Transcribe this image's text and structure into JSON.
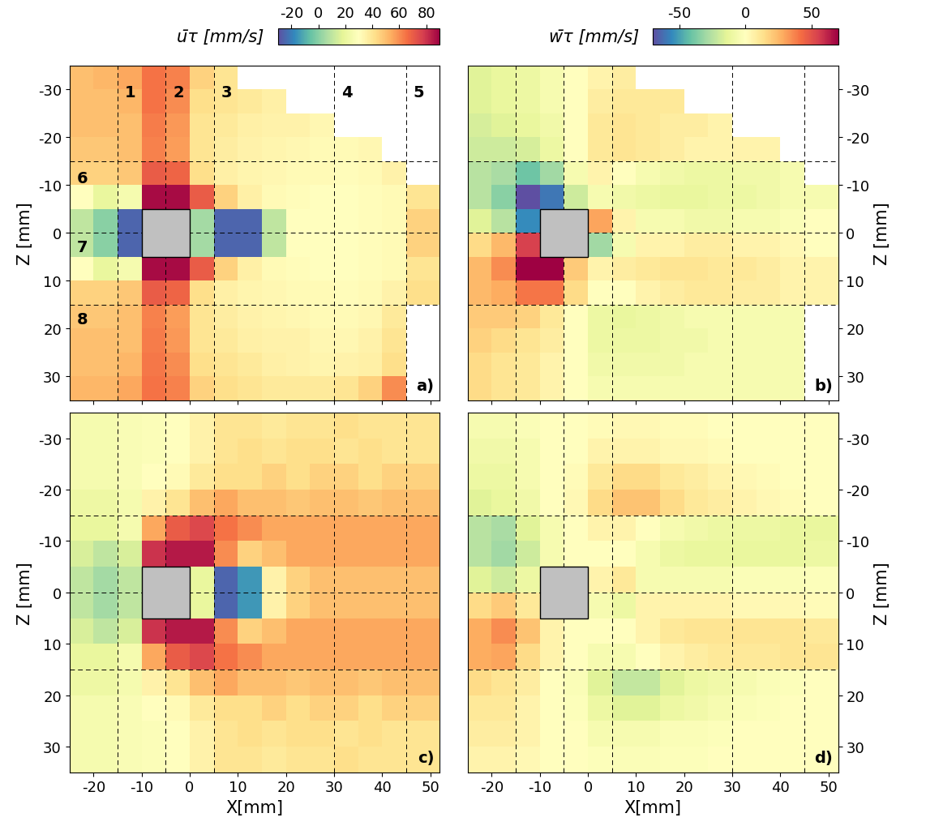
{
  "chart_data": [
    {
      "type": "heatmap",
      "panel_label": "a)",
      "ylabel": "Z [mm]",
      "xlim": [
        -25,
        52
      ],
      "ylim": [
        35,
        -35
      ],
      "xticks": [
        -20,
        -10,
        0,
        10,
        20,
        30,
        40,
        50
      ],
      "yticks": [
        -30,
        -20,
        -10,
        0,
        10,
        20,
        30
      ],
      "tick_labels": "y",
      "y_side": "left",
      "x_edges": [
        -25,
        -20,
        -15,
        -10,
        -5,
        0,
        5,
        10,
        15,
        20,
        25,
        30,
        35,
        40,
        45,
        52
      ],
      "y_edges": [
        -35,
        -30,
        -25,
        -20,
        -15,
        -10,
        -5,
        0,
        5,
        10,
        15,
        20,
        25,
        30,
        35
      ],
      "clim": [
        -30,
        90
      ],
      "colorbar": {
        "label": "ūτ [mm/s]",
        "ticks": [
          -20,
          0,
          20,
          40,
          60,
          80
        ]
      },
      "cells": [
        [
          50,
          52,
          55,
          65,
          62,
          45,
          40,
          null,
          null,
          null,
          null,
          null,
          null,
          null,
          null
        ],
        [
          50,
          50,
          52,
          65,
          60,
          42,
          40,
          38,
          36,
          null,
          null,
          null,
          null,
          null,
          null
        ],
        [
          50,
          50,
          50,
          63,
          58,
          40,
          38,
          36,
          35,
          35,
          33,
          null,
          null,
          null,
          null
        ],
        [
          48,
          48,
          50,
          62,
          57,
          40,
          37,
          35,
          34,
          33,
          32,
          32,
          33,
          null,
          null
        ],
        [
          45,
          45,
          48,
          70,
          68,
          42,
          36,
          34,
          33,
          32,
          32,
          31,
          32,
          35,
          null
        ],
        [
          30,
          20,
          25,
          88,
          88,
          70,
          45,
          36,
          32,
          31,
          30,
          30,
          31,
          32,
          40
        ],
        [
          10,
          0,
          -25,
          null,
          null,
          5,
          -25,
          -25,
          10,
          30,
          30,
          30,
          31,
          32,
          45
        ],
        [
          10,
          0,
          -25,
          null,
          null,
          5,
          -25,
          -25,
          10,
          30,
          30,
          30,
          31,
          32,
          45
        ],
        [
          30,
          20,
          25,
          88,
          88,
          70,
          45,
          36,
          32,
          31,
          30,
          30,
          31,
          32,
          40
        ],
        [
          45,
          45,
          48,
          70,
          68,
          42,
          36,
          34,
          33,
          32,
          32,
          31,
          32,
          35,
          42
        ],
        [
          48,
          48,
          50,
          62,
          57,
          40,
          37,
          35,
          34,
          33,
          32,
          32,
          33,
          38,
          null
        ],
        [
          50,
          50,
          50,
          63,
          58,
          40,
          38,
          36,
          35,
          35,
          33,
          33,
          35,
          40,
          null
        ],
        [
          50,
          50,
          52,
          64,
          60,
          42,
          40,
          38,
          36,
          35,
          34,
          35,
          36,
          42,
          null
        ],
        [
          52,
          52,
          55,
          65,
          62,
          45,
          42,
          40,
          38,
          38,
          38,
          40,
          45,
          60,
          null
        ]
      ],
      "obstacle": {
        "x": [
          -10,
          0
        ],
        "y": [
          -5,
          5
        ]
      },
      "reference_lines": {
        "x": [
          -15,
          -5,
          5,
          30,
          45
        ],
        "y": [
          -15,
          0,
          15
        ]
      },
      "line_labels": [
        {
          "label": "1",
          "x": -15
        },
        {
          "label": "2",
          "x": -5
        },
        {
          "label": "3",
          "x": 5
        },
        {
          "label": "4",
          "x": 30
        },
        {
          "label": "5",
          "x": 45
        },
        {
          "label": "6",
          "y": -15
        },
        {
          "label": "7",
          "y": 0
        },
        {
          "label": "8",
          "y": 15
        }
      ]
    },
    {
      "type": "heatmap",
      "panel_label": "b)",
      "ylabel": "Z [mm]",
      "xlim": [
        -25,
        52
      ],
      "ylim": [
        35,
        -35
      ],
      "xticks": [
        -20,
        -10,
        0,
        10,
        20,
        30,
        40,
        50
      ],
      "yticks": [
        -30,
        -20,
        -10,
        0,
        10,
        20,
        30
      ],
      "tick_labels": "y",
      "y_side": "right",
      "x_edges": [
        -25,
        -20,
        -15,
        -10,
        -5,
        0,
        5,
        10,
        15,
        20,
        25,
        30,
        35,
        40,
        45,
        52
      ],
      "y_edges": [
        -35,
        -30,
        -25,
        -20,
        -15,
        -10,
        -5,
        0,
        5,
        10,
        15,
        20,
        25,
        30,
        35
      ],
      "clim": [
        -70,
        70
      ],
      "colorbar": {
        "label": "w̄τ [mm/s]",
        "ticks": [
          -50,
          0,
          50
        ]
      },
      "cells": [
        [
          -15,
          -12,
          -10,
          -5,
          0,
          5,
          8,
          null,
          null,
          null,
          null,
          null,
          null,
          null,
          null
        ],
        [
          -15,
          -12,
          -10,
          -5,
          0,
          8,
          10,
          10,
          10,
          null,
          null,
          null,
          null,
          null,
          null
        ],
        [
          -18,
          -15,
          -12,
          -8,
          0,
          10,
          12,
          10,
          8,
          8,
          5,
          null,
          null,
          null,
          null
        ],
        [
          -20,
          -20,
          -18,
          -10,
          0,
          10,
          12,
          10,
          8,
          5,
          5,
          5,
          5,
          null,
          null
        ],
        [
          -25,
          -28,
          -40,
          -30,
          -5,
          5,
          0,
          -5,
          -8,
          -10,
          -10,
          -8,
          -8,
          -5,
          null
        ],
        [
          -25,
          -35,
          -70,
          -60,
          -20,
          -5,
          -8,
          -10,
          -12,
          -12,
          -10,
          -10,
          -8,
          -5,
          -5
        ],
        [
          -15,
          -25,
          -55,
          null,
          null,
          30,
          5,
          -5,
          -5,
          -8,
          -8,
          -5,
          -5,
          -3,
          0
        ],
        [
          15,
          25,
          55,
          null,
          null,
          -30,
          -5,
          5,
          5,
          8,
          8,
          5,
          5,
          3,
          0
        ],
        [
          25,
          35,
          70,
          70,
          20,
          5,
          8,
          10,
          12,
          12,
          10,
          10,
          8,
          5,
          5
        ],
        [
          25,
          28,
          40,
          40,
          15,
          0,
          0,
          5,
          8,
          10,
          10,
          8,
          8,
          5,
          5
        ],
        [
          20,
          20,
          18,
          10,
          0,
          -10,
          -12,
          -10,
          -8,
          -5,
          -5,
          -5,
          -5,
          -5,
          null
        ],
        [
          18,
          15,
          12,
          8,
          0,
          -10,
          -10,
          -10,
          -8,
          -8,
          -5,
          -5,
          -5,
          -5,
          null
        ],
        [
          15,
          12,
          10,
          5,
          0,
          -8,
          -8,
          -8,
          -8,
          -5,
          -5,
          -5,
          -5,
          -5,
          null
        ],
        [
          15,
          12,
          10,
          5,
          0,
          -5,
          -5,
          -5,
          -5,
          -5,
          -5,
          -5,
          -5,
          -5,
          null
        ]
      ],
      "obstacle": {
        "x": [
          -10,
          0
        ],
        "y": [
          -5,
          5
        ]
      },
      "reference_lines": {
        "x": [
          -15,
          -5,
          5,
          30,
          45
        ],
        "y": [
          -15,
          0,
          15
        ]
      }
    },
    {
      "type": "heatmap",
      "panel_label": "c)",
      "xlabel": "X[mm]",
      "ylabel": "Z [mm]",
      "xlim": [
        -25,
        52
      ],
      "ylim": [
        35,
        -35
      ],
      "xticks": [
        -20,
        -10,
        0,
        10,
        20,
        30,
        40,
        50
      ],
      "yticks": [
        -30,
        -20,
        -10,
        0,
        10,
        20,
        30
      ],
      "tick_labels": true,
      "y_side": "left",
      "x_edges": [
        -25,
        -20,
        -15,
        -10,
        -5,
        0,
        5,
        10,
        15,
        20,
        25,
        30,
        35,
        40,
        45,
        52
      ],
      "y_edges": [
        -35,
        -30,
        -25,
        -20,
        -15,
        -10,
        -5,
        0,
        5,
        10,
        15,
        20,
        25,
        30,
        35
      ],
      "clim": [
        -30,
        90
      ],
      "cells": [
        [
          25,
          25,
          27,
          28,
          30,
          35,
          40,
          40,
          38,
          40,
          40,
          42,
          40,
          40,
          40
        ],
        [
          25,
          25,
          27,
          28,
          30,
          35,
          40,
          42,
          40,
          42,
          42,
          40,
          42,
          40,
          40
        ],
        [
          25,
          25,
          27,
          30,
          32,
          38,
          42,
          42,
          45,
          42,
          45,
          45,
          42,
          45,
          45
        ],
        [
          22,
          22,
          25,
          35,
          40,
          50,
          55,
          50,
          50,
          48,
          50,
          50,
          48,
          50,
          50
        ],
        [
          20,
          20,
          25,
          55,
          70,
          75,
          65,
          60,
          55,
          55,
          55,
          55,
          55,
          55,
          55
        ],
        [
          15,
          10,
          15,
          80,
          85,
          85,
          60,
          45,
          50,
          55,
          55,
          55,
          55,
          55,
          55
        ],
        [
          10,
          5,
          10,
          null,
          null,
          20,
          -25,
          -15,
          35,
          45,
          50,
          50,
          50,
          50,
          50
        ],
        [
          10,
          5,
          10,
          null,
          null,
          20,
          -25,
          -15,
          35,
          45,
          50,
          50,
          50,
          50,
          50
        ],
        [
          15,
          10,
          15,
          80,
          85,
          85,
          60,
          45,
          50,
          55,
          55,
          55,
          55,
          55,
          55
        ],
        [
          20,
          20,
          25,
          55,
          70,
          75,
          65,
          60,
          55,
          55,
          55,
          55,
          55,
          55,
          55
        ],
        [
          22,
          22,
          25,
          35,
          40,
          50,
          55,
          50,
          50,
          48,
          50,
          50,
          48,
          50,
          50
        ],
        [
          25,
          25,
          27,
          30,
          32,
          38,
          42,
          42,
          45,
          42,
          45,
          45,
          42,
          45,
          45
        ],
        [
          25,
          25,
          27,
          28,
          30,
          35,
          40,
          42,
          40,
          42,
          42,
          40,
          42,
          40,
          40
        ],
        [
          25,
          25,
          27,
          28,
          30,
          35,
          40,
          40,
          38,
          40,
          40,
          42,
          40,
          40,
          40
        ]
      ],
      "obstacle": {
        "x": [
          -10,
          0
        ],
        "y": [
          -5,
          5
        ]
      },
      "reference_lines": {
        "x": [
          -15,
          -5,
          5,
          30,
          45
        ],
        "y": [
          -15,
          0,
          15
        ]
      }
    },
    {
      "type": "heatmap",
      "panel_label": "d)",
      "xlabel": "X[mm]",
      "ylabel": "Z [mm]",
      "xlim": [
        -25,
        52
      ],
      "ylim": [
        35,
        -35
      ],
      "xticks": [
        -20,
        -10,
        0,
        10,
        20,
        30,
        40,
        50
      ],
      "yticks": [
        -30,
        -20,
        -10,
        0,
        10,
        20,
        30
      ],
      "tick_labels": true,
      "y_side": "right",
      "x_edges": [
        -25,
        -20,
        -15,
        -10,
        -5,
        0,
        5,
        10,
        15,
        20,
        25,
        30,
        35,
        40,
        45,
        52
      ],
      "y_edges": [
        -35,
        -30,
        -25,
        -20,
        -15,
        -10,
        -5,
        0,
        5,
        10,
        15,
        20,
        25,
        30,
        35
      ],
      "clim": [
        -70,
        70
      ],
      "cells": [
        [
          -5,
          -5,
          -3,
          0,
          0,
          2,
          3,
          3,
          2,
          2,
          0,
          0,
          0,
          0,
          0
        ],
        [
          -8,
          -8,
          -5,
          0,
          0,
          5,
          5,
          5,
          3,
          3,
          2,
          0,
          0,
          0,
          0
        ],
        [
          -10,
          -10,
          -5,
          0,
          2,
          10,
          15,
          15,
          10,
          8,
          5,
          3,
          2,
          0,
          0
        ],
        [
          -15,
          -12,
          -8,
          0,
          3,
          15,
          22,
          22,
          15,
          10,
          8,
          5,
          3,
          2,
          0
        ],
        [
          -25,
          -28,
          -15,
          -5,
          0,
          5,
          5,
          0,
          -5,
          -8,
          -10,
          -10,
          -10,
          -12,
          -12
        ],
        [
          -25,
          -30,
          -20,
          -5,
          0,
          0,
          0,
          -5,
          -10,
          -12,
          -12,
          -12,
          -12,
          -12,
          -10
        ],
        [
          -15,
          -20,
          -10,
          null,
          null,
          5,
          10,
          -5,
          -5,
          -5,
          -5,
          -3,
          -3,
          -3,
          -2
        ],
        [
          15,
          20,
          10,
          null,
          null,
          -5,
          -10,
          5,
          5,
          5,
          5,
          3,
          3,
          3,
          2
        ],
        [
          28,
          35,
          22,
          5,
          0,
          0,
          0,
          5,
          10,
          12,
          12,
          12,
          12,
          12,
          10
        ],
        [
          28,
          30,
          15,
          5,
          0,
          -5,
          -5,
          0,
          5,
          8,
          10,
          10,
          10,
          12,
          12
        ],
        [
          15,
          12,
          8,
          0,
          -3,
          -15,
          -22,
          -22,
          -15,
          -10,
          -8,
          -5,
          -3,
          -2,
          0
        ],
        [
          10,
          10,
          5,
          0,
          -2,
          -10,
          -15,
          -15,
          -10,
          -8,
          -5,
          -3,
          -2,
          0,
          0
        ],
        [
          8,
          8,
          5,
          0,
          0,
          -5,
          -5,
          -5,
          -3,
          -3,
          -2,
          0,
          0,
          0,
          0
        ],
        [
          5,
          5,
          3,
          0,
          0,
          -2,
          -3,
          -3,
          -2,
          -2,
          0,
          0,
          0,
          0,
          0
        ]
      ],
      "obstacle": {
        "x": [
          -10,
          0
        ],
        "y": [
          -5,
          5
        ]
      },
      "reference_lines": {
        "x": [
          -15,
          -5,
          5,
          30,
          45
        ],
        "y": [
          -15,
          0,
          15
        ]
      }
    }
  ]
}
